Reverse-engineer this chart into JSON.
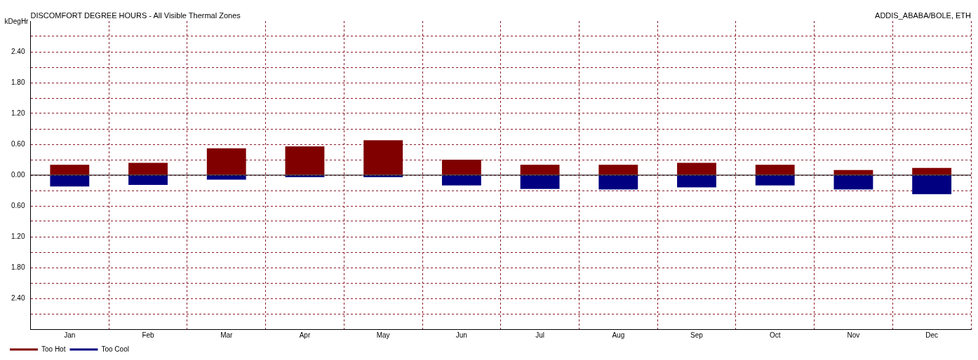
{
  "chart_data": {
    "type": "bar",
    "title": "DISCOMFORT DEGREE HOURS - All Visible Thermal Zones",
    "subtitle": "ADDIS_ABABA/BOLE, ETH",
    "ylabel": "kDegHr",
    "categories": [
      "Jan",
      "Feb",
      "Mar",
      "Apr",
      "May",
      "Jun",
      "Jul",
      "Aug",
      "Sep",
      "Oct",
      "Nov",
      "Dec"
    ],
    "stacked": true,
    "series": [
      {
        "name": "Too Hot",
        "color": "#800000",
        "values": [
          0.2,
          0.24,
          0.52,
          0.56,
          0.68,
          0.3,
          0.2,
          0.2,
          0.24,
          0.2,
          0.1,
          0.14
        ]
      },
      {
        "name": "Too Cool",
        "color": "#000080",
        "values": [
          -0.22,
          -0.19,
          -0.09,
          -0.04,
          -0.04,
          -0.2,
          -0.27,
          -0.28,
          -0.24,
          -0.2,
          -0.28,
          -0.37
        ]
      }
    ],
    "ylim": [
      -3,
      3
    ],
    "yticks": [
      {
        "value": -2.7,
        "label": null
      },
      {
        "value": -2.4,
        "label": "2.40"
      },
      {
        "value": -2.1,
        "label": null
      },
      {
        "value": -1.8,
        "label": "1.80"
      },
      {
        "value": -1.5,
        "label": null
      },
      {
        "value": -1.2,
        "label": "1.20"
      },
      {
        "value": -0.9,
        "label": null
      },
      {
        "value": -0.6,
        "label": "0.60"
      },
      {
        "value": -0.3,
        "label": null
      },
      {
        "value": 0,
        "label": "0.00"
      },
      {
        "value": 0.3,
        "label": null
      },
      {
        "value": 0.6,
        "label": "0.60"
      },
      {
        "value": 0.9,
        "label": null
      },
      {
        "value": 1.2,
        "label": "1.20"
      },
      {
        "value": 1.5,
        "label": null
      },
      {
        "value": 1.8,
        "label": "1.80"
      },
      {
        "value": 2.1,
        "label": null
      },
      {
        "value": 2.4,
        "label": "2.40"
      },
      {
        "value": 2.7,
        "label": null
      }
    ],
    "grid": true,
    "legend": "bottom left"
  }
}
